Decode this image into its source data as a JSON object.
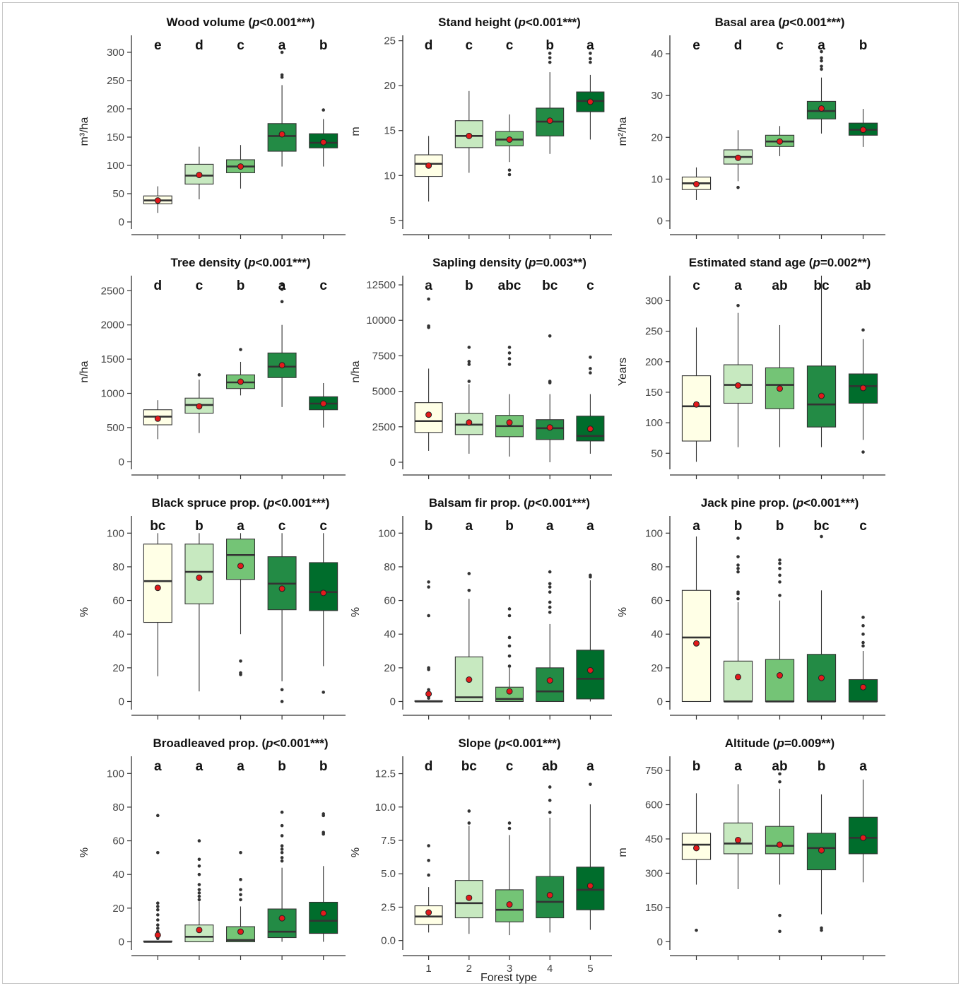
{
  "fill_colors": [
    "#ffffe6",
    "#c7e9c0",
    "#74c476",
    "#238b45",
    "#006d2c"
  ],
  "mean_color": "#e31a1c",
  "x_label": "Forest type",
  "categories": [
    "1",
    "2",
    "3",
    "4",
    "5"
  ],
  "chart_data": [
    {
      "type": "boxplot",
      "title_main": "Wood volume (",
      "title_p": "p",
      "title_rest": "<0.001***)",
      "ylabel": "m³/ha",
      "ylim": [
        0,
        300
      ],
      "yticks": [
        0,
        50,
        100,
        150,
        200,
        250,
        300
      ],
      "yrange": [
        -10,
        330
      ],
      "letters": [
        "e",
        "d",
        "c",
        "a",
        "b"
      ],
      "boxes": [
        {
          "q1": 32,
          "median": 38,
          "q3": 46,
          "wlo": 16,
          "whi": 63,
          "mean": 38,
          "outliers": []
        },
        {
          "q1": 67,
          "median": 82,
          "q3": 102,
          "wlo": 40,
          "whi": 133,
          "mean": 83,
          "outliers": []
        },
        {
          "q1": 87,
          "median": 98,
          "q3": 110,
          "wlo": 59,
          "whi": 136,
          "mean": 98,
          "outliers": []
        },
        {
          "q1": 125,
          "median": 152,
          "q3": 174,
          "wlo": 98,
          "whi": 242,
          "mean": 155,
          "outliers": [
            256,
            260,
            300
          ]
        },
        {
          "q1": 131,
          "median": 140,
          "q3": 156,
          "wlo": 98,
          "whi": 182,
          "mean": 141,
          "outliers": [
            198
          ]
        }
      ]
    },
    {
      "type": "boxplot",
      "title_main": "Stand height (",
      "title_p": "p",
      "title_rest": "<0.001***)",
      "ylabel": "m",
      "ylim": [
        5,
        25
      ],
      "yticks": [
        5,
        10,
        15,
        20,
        25
      ],
      "yrange": [
        4.2,
        25.6
      ],
      "letters": [
        "d",
        "c",
        "c",
        "b",
        "a"
      ],
      "boxes": [
        {
          "q1": 9.9,
          "median": 11.3,
          "q3": 12.3,
          "wlo": 7.1,
          "whi": 14.4,
          "mean": 11.1,
          "outliers": []
        },
        {
          "q1": 13.1,
          "median": 14.4,
          "q3": 16.1,
          "wlo": 10.3,
          "whi": 19.4,
          "mean": 14.4,
          "outliers": []
        },
        {
          "q1": 13.3,
          "median": 14.0,
          "q3": 14.9,
          "wlo": 11.5,
          "whi": 16.8,
          "mean": 14.0,
          "outliers": [
            10.1,
            10.6
          ]
        },
        {
          "q1": 14.4,
          "median": 16.0,
          "q3": 17.5,
          "wlo": 12.4,
          "whi": 21.5,
          "mean": 16.1,
          "outliers": [
            22.6,
            23.1,
            23.6
          ]
        },
        {
          "q1": 17.1,
          "median": 18.3,
          "q3": 19.3,
          "wlo": 14.0,
          "whi": 21.2,
          "mean": 18.2,
          "outliers": [
            22.6,
            23.0,
            23.6
          ]
        }
      ]
    },
    {
      "type": "boxplot",
      "title_main": "Basal area (",
      "title_p": "p",
      "title_rest": "<0.001***)",
      "ylabel": "m²/ha",
      "ylim": [
        0,
        40
      ],
      "yticks": [
        0,
        10,
        20,
        30,
        40
      ],
      "yrange": [
        -1.6,
        44.4
      ],
      "letters": [
        "e",
        "d",
        "c",
        "a",
        "b"
      ],
      "boxes": [
        {
          "q1": 7.5,
          "median": 9.0,
          "q3": 10.5,
          "wlo": 5.0,
          "whi": 12.8,
          "mean": 8.8,
          "outliers": []
        },
        {
          "q1": 13.6,
          "median": 15.3,
          "q3": 17.0,
          "wlo": 9.5,
          "whi": 21.7,
          "mean": 15.1,
          "outliers": [
            8.0
          ]
        },
        {
          "q1": 17.8,
          "median": 19.0,
          "q3": 20.5,
          "wlo": 15.5,
          "whi": 22.7,
          "mean": 19.0,
          "outliers": []
        },
        {
          "q1": 24.4,
          "median": 26.3,
          "q3": 28.6,
          "wlo": 20.9,
          "whi": 34.3,
          "mean": 26.9,
          "outliers": [
            36.3,
            37.0,
            38.3,
            39.0,
            40.5
          ]
        },
        {
          "q1": 20.5,
          "median": 21.8,
          "q3": 23.4,
          "wlo": 17.7,
          "whi": 26.8,
          "mean": 21.8,
          "outliers": []
        }
      ]
    },
    {
      "type": "boxplot",
      "title_main": "Tree density (",
      "title_p": "p",
      "title_rest": "<0.001***)",
      "ylabel": "n/ha",
      "ylim": [
        0,
        2500
      ],
      "yticks": [
        0,
        500,
        1000,
        1500,
        2000,
        2500
      ],
      "yrange": [
        -90,
        2720
      ],
      "letters": [
        "d",
        "c",
        "b",
        "a",
        "c"
      ],
      "boxes": [
        {
          "q1": 540,
          "median": 660,
          "q3": 760,
          "wlo": 330,
          "whi": 900,
          "mean": 630,
          "outliers": []
        },
        {
          "q1": 710,
          "median": 830,
          "q3": 930,
          "wlo": 420,
          "whi": 1200,
          "mean": 810,
          "outliers": [
            1270
          ]
        },
        {
          "q1": 1070,
          "median": 1160,
          "q3": 1270,
          "wlo": 970,
          "whi": 1460,
          "mean": 1170,
          "outliers": [
            1640
          ]
        },
        {
          "q1": 1230,
          "median": 1390,
          "q3": 1590,
          "wlo": 800,
          "whi": 2000,
          "mean": 1410,
          "outliers": [
            2340,
            2520,
            2600
          ]
        },
        {
          "q1": 760,
          "median": 850,
          "q3": 950,
          "wlo": 500,
          "whi": 1150,
          "mean": 850,
          "outliers": []
        }
      ]
    },
    {
      "type": "boxplot",
      "title_main": "Sapling density (",
      "title_p": "p",
      "title_rest": "=0.003**)",
      "ylabel": "n/ha",
      "ylim": [
        0,
        12500
      ],
      "yticks": [
        0,
        2500,
        5000,
        7500,
        10000,
        12500
      ],
      "yrange": [
        -400,
        13150
      ],
      "letters": [
        "a",
        "b",
        "abc",
        "bc",
        "c"
      ],
      "boxes": [
        {
          "q1": 2100,
          "median": 2900,
          "q3": 4200,
          "wlo": 800,
          "whi": 6600,
          "mean": 3350,
          "outliers": [
            9500,
            9600,
            11500
          ]
        },
        {
          "q1": 1950,
          "median": 2650,
          "q3": 3450,
          "wlo": 600,
          "whi": 5500,
          "mean": 2800,
          "outliers": [
            5700,
            6900,
            7100,
            8100
          ]
        },
        {
          "q1": 1800,
          "median": 2550,
          "q3": 3300,
          "wlo": 400,
          "whi": 4800,
          "mean": 2800,
          "outliers": [
            6900,
            7300,
            7700,
            8100
          ]
        },
        {
          "q1": 1600,
          "median": 2400,
          "q3": 3000,
          "wlo": 0,
          "whi": 4800,
          "mean": 2450,
          "outliers": [
            5600,
            5700,
            8900
          ]
        },
        {
          "q1": 1500,
          "median": 1850,
          "q3": 3250,
          "wlo": 600,
          "whi": 4800,
          "mean": 2350,
          "outliers": [
            6300,
            6600,
            7400
          ]
        }
      ]
    },
    {
      "type": "boxplot",
      "title_main": "Estimated stand age (",
      "title_p": "p",
      "title_rest": "=0.002**)",
      "ylabel": "Years",
      "ylim": [
        50,
        300
      ],
      "yticks": [
        50,
        100,
        150,
        200,
        250,
        300
      ],
      "yrange": [
        26,
        341
      ],
      "letters": [
        "c",
        "a",
        "ab",
        "bc",
        "ab"
      ],
      "boxes": [
        {
          "q1": 70,
          "median": 127,
          "q3": 177,
          "wlo": 36,
          "whi": 256,
          "mean": 130,
          "outliers": []
        },
        {
          "q1": 132,
          "median": 162,
          "q3": 195,
          "wlo": 60,
          "whi": 280,
          "mean": 161,
          "outliers": [
            292
          ]
        },
        {
          "q1": 123,
          "median": 162,
          "q3": 190,
          "wlo": 60,
          "whi": 260,
          "mean": 156,
          "outliers": []
        },
        {
          "q1": 93,
          "median": 130,
          "q3": 193,
          "wlo": 60,
          "whi": 341,
          "mean": 144,
          "outliers": []
        },
        {
          "q1": 132,
          "median": 160,
          "q3": 180,
          "wlo": 72,
          "whi": 237,
          "mean": 157,
          "outliers": [
            52,
            252
          ]
        }
      ]
    },
    {
      "type": "boxplot",
      "title_main": "Black spruce prop. (",
      "title_p": "p",
      "title_rest": "<0.001***)",
      "ylabel": "%",
      "ylim": [
        0,
        100
      ],
      "yticks": [
        0,
        20,
        40,
        60,
        80,
        100
      ],
      "yrange": [
        -4,
        110.2
      ],
      "letters": [
        "bc",
        "b",
        "a",
        "c",
        "c"
      ],
      "boxes": [
        {
          "q1": 47,
          "median": 71.5,
          "q3": 93.5,
          "wlo": 15,
          "whi": 100,
          "mean": 67.5,
          "outliers": []
        },
        {
          "q1": 58,
          "median": 77,
          "q3": 93.5,
          "wlo": 6,
          "whi": 100,
          "mean": 73.5,
          "outliers": []
        },
        {
          "q1": 72.5,
          "median": 87,
          "q3": 96.5,
          "wlo": 40,
          "whi": 100,
          "mean": 80.5,
          "outliers": [
            16,
            17,
            24
          ]
        },
        {
          "q1": 54.5,
          "median": 70,
          "q3": 86,
          "wlo": 12,
          "whi": 100,
          "mean": 67,
          "outliers": [
            0,
            7
          ]
        },
        {
          "q1": 54,
          "median": 65,
          "q3": 82.5,
          "wlo": 21,
          "whi": 100,
          "mean": 64.5,
          "outliers": [
            5.5
          ]
        }
      ]
    },
    {
      "type": "boxplot",
      "title_main": "Balsam fir prop. (",
      "title_p": "p",
      "title_rest": "<0.001***)",
      "ylabel": "%",
      "ylim": [
        0,
        100
      ],
      "yticks": [
        0,
        20,
        40,
        60,
        80,
        100
      ],
      "yrange": [
        -4,
        110.2
      ],
      "letters": [
        "b",
        "a",
        "b",
        "a",
        "a"
      ],
      "boxes": [
        {
          "q1": 0,
          "median": 0,
          "q3": 0.5,
          "wlo": 0,
          "whi": 0.5,
          "mean": 4.5,
          "outliers": [
            2,
            3,
            5,
            7,
            19,
            20,
            51,
            68,
            71
          ]
        },
        {
          "q1": 0,
          "median": 2.5,
          "q3": 26.5,
          "wlo": 0,
          "whi": 61,
          "mean": 13,
          "outliers": [
            66,
            76
          ]
        },
        {
          "q1": 0,
          "median": 1.5,
          "q3": 8.5,
          "wlo": 0,
          "whi": 20,
          "mean": 6,
          "outliers": [
            21,
            27,
            33,
            38,
            51,
            55
          ]
        },
        {
          "q1": 0,
          "median": 6,
          "q3": 20,
          "wlo": 0,
          "whi": 46,
          "mean": 12.5,
          "outliers": [
            53,
            56,
            59,
            65,
            68,
            70,
            77
          ]
        },
        {
          "q1": 1.5,
          "median": 13.5,
          "q3": 30.5,
          "wlo": 0,
          "whi": 72,
          "mean": 18.5,
          "outliers": [
            74,
            75
          ]
        }
      ]
    },
    {
      "type": "boxplot",
      "title_main": "Jack pine prop. (",
      "title_p": "p",
      "title_rest": "<0.001***)",
      "ylabel": "%",
      "ylim": [
        0,
        100
      ],
      "yticks": [
        0,
        20,
        40,
        60,
        80,
        100
      ],
      "yrange": [
        -4,
        110.2
      ],
      "letters": [
        "a",
        "b",
        "b",
        "bc",
        "c"
      ],
      "boxes": [
        {
          "q1": 0,
          "median": 38,
          "q3": 66,
          "wlo": 0,
          "whi": 98,
          "mean": 34.5,
          "outliers": []
        },
        {
          "q1": 0,
          "median": 0,
          "q3": 24,
          "wlo": 0,
          "whi": 59,
          "mean": 14.5,
          "outliers": [
            61,
            64,
            65,
            77,
            79,
            81,
            86,
            97
          ]
        },
        {
          "q1": 0,
          "median": 0,
          "q3": 25,
          "wlo": 0,
          "whi": 60,
          "mean": 15.5,
          "outliers": [
            63,
            71,
            75,
            79,
            82,
            84
          ]
        },
        {
          "q1": 0,
          "median": 0,
          "q3": 28,
          "wlo": 0,
          "whi": 66,
          "mean": 14,
          "outliers": [
            98
          ]
        },
        {
          "q1": 0,
          "median": 0,
          "q3": 13,
          "wlo": 0,
          "whi": 30,
          "mean": 8.5,
          "outliers": [
            33,
            35,
            40,
            45,
            50
          ]
        }
      ]
    },
    {
      "type": "boxplot",
      "title_main": "Broadleaved prop. (",
      "title_p": "p",
      "title_rest": "<0.001***)",
      "ylabel": "%",
      "ylim": [
        0,
        100
      ],
      "yticks": [
        0,
        20,
        40,
        60,
        80,
        100
      ],
      "yrange": [
        -4,
        110.2
      ],
      "letters": [
        "a",
        "a",
        "a",
        "b",
        "b"
      ],
      "boxes": [
        {
          "q1": 0,
          "median": 0,
          "q3": 0.5,
          "wlo": 0,
          "whi": 0.5,
          "mean": 4,
          "outliers": [
            2,
            4,
            6,
            8,
            10,
            13,
            16,
            19,
            21,
            23,
            53,
            75
          ]
        },
        {
          "q1": 0,
          "median": 3,
          "q3": 10,
          "wlo": 0,
          "whi": 24,
          "mean": 7,
          "outliers": [
            25,
            27,
            29,
            31,
            34,
            40,
            45,
            49,
            60
          ]
        },
        {
          "q1": 0,
          "median": 1,
          "q3": 9,
          "wlo": 0,
          "whi": 21,
          "mean": 6,
          "outliers": [
            25,
            28,
            31,
            37,
            53
          ]
        },
        {
          "q1": 2.5,
          "median": 6,
          "q3": 19.5,
          "wlo": 0,
          "whi": 44,
          "mean": 14,
          "outliers": [
            48,
            50,
            53,
            55,
            57,
            63,
            69,
            77
          ]
        },
        {
          "q1": 5,
          "median": 12.5,
          "q3": 23.5,
          "wlo": 0,
          "whi": 45,
          "mean": 17,
          "outliers": [
            64,
            65,
            75,
            76
          ]
        }
      ]
    },
    {
      "type": "boxplot",
      "title_main": "Slope (",
      "title_p": "p",
      "title_rest": "<0.001***)",
      "ylabel": "%",
      "ylim": [
        0,
        12.5
      ],
      "yticks": [
        "0.0",
        "2.5",
        "5.0",
        "7.5",
        "10.0",
        "12.5"
      ],
      "yrange": [
        -0.6,
        13.8
      ],
      "letters": [
        "d",
        "bc",
        "c",
        "ab",
        "a"
      ],
      "boxes": [
        {
          "q1": 1.2,
          "median": 1.8,
          "q3": 2.6,
          "wlo": 0.6,
          "whi": 4.0,
          "mean": 2.1,
          "outliers": [
            4.9,
            6.0,
            7.1
          ]
        },
        {
          "q1": 1.7,
          "median": 2.8,
          "q3": 4.5,
          "wlo": 0.5,
          "whi": 8.6,
          "mean": 3.2,
          "outliers": [
            8.8,
            9.7
          ]
        },
        {
          "q1": 1.4,
          "median": 2.3,
          "q3": 3.8,
          "wlo": 0.4,
          "whi": 7.9,
          "mean": 2.7,
          "outliers": [
            8.4,
            8.8
          ]
        },
        {
          "q1": 1.7,
          "median": 2.9,
          "q3": 4.8,
          "wlo": 0.6,
          "whi": 9.2,
          "mean": 3.4,
          "outliers": [
            9.6,
            10.5,
            11.5
          ]
        },
        {
          "q1": 2.3,
          "median": 3.8,
          "q3": 5.5,
          "wlo": 0.8,
          "whi": 10.2,
          "mean": 4.1,
          "outliers": [
            11.7
          ]
        }
      ]
    },
    {
      "type": "boxplot",
      "title_main": "Altitude (",
      "title_p": "p",
      "title_rest": "=0.009**)",
      "ylabel": "m",
      "ylim": [
        0,
        750
      ],
      "yticks": [
        0,
        150,
        300,
        450,
        600,
        750
      ],
      "yrange": [
        -30,
        812
      ],
      "letters": [
        "b",
        "a",
        "ab",
        "b",
        "a"
      ],
      "boxes": [
        {
          "q1": 360,
          "median": 425,
          "q3": 475,
          "wlo": 250,
          "whi": 650,
          "mean": 410,
          "outliers": [
            50
          ]
        },
        {
          "q1": 385,
          "median": 430,
          "q3": 520,
          "wlo": 230,
          "whi": 690,
          "mean": 445,
          "outliers": []
        },
        {
          "q1": 385,
          "median": 420,
          "q3": 505,
          "wlo": 250,
          "whi": 670,
          "mean": 425,
          "outliers": [
            45,
            115,
            700,
            735
          ]
        },
        {
          "q1": 315,
          "median": 410,
          "q3": 475,
          "wlo": 120,
          "whi": 645,
          "mean": 400,
          "outliers": [
            50,
            60
          ]
        },
        {
          "q1": 385,
          "median": 455,
          "q3": 545,
          "wlo": 260,
          "whi": 710,
          "mean": 455,
          "outliers": []
        }
      ]
    }
  ]
}
